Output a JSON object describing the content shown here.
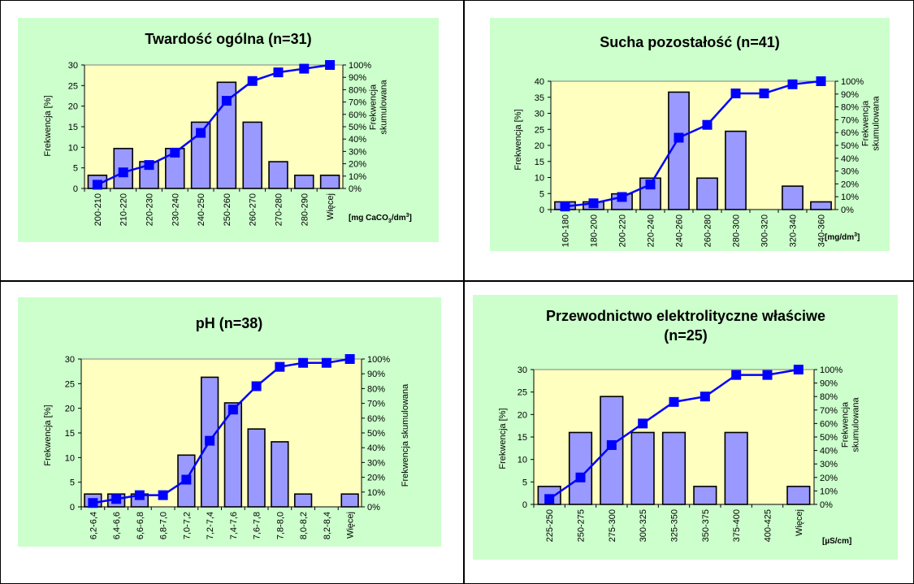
{
  "colors": {
    "panel": "#ccffcc",
    "plot_area": "#ffffc0",
    "bar_fill": "#9999ff",
    "bar_stroke": "#000000",
    "line": "#0000ff"
  },
  "chart_data": [
    {
      "type": "bar",
      "title": "Twardość ogólna (n=31)",
      "ylabel": "Frekwencja [%]",
      "y2label_lines": [
        "Frekwencja",
        "skumulowana"
      ],
      "unit_text": "[mg CaCO",
      "unit_sub": "3",
      "unit_mid": "/dm",
      "unit_sup": "3",
      "unit_end": "]",
      "categories": [
        "200-210",
        "210-220",
        "220-230",
        "230-240",
        "240-250",
        "250-260",
        "260-270",
        "270-280",
        "280-290",
        "Więcej"
      ],
      "series": [
        {
          "values": [
            3.2,
            9.7,
            6.5,
            9.7,
            16.1,
            25.8,
            16.1,
            6.5,
            3.2,
            3.2
          ]
        },
        {
          "axis": "secondary",
          "values": [
            0.03,
            0.13,
            0.19,
            0.29,
            0.45,
            0.71,
            0.87,
            0.94,
            0.97,
            1.0
          ]
        }
      ],
      "ylim": [
        0,
        30
      ],
      "yticks": [
        "0",
        "5",
        "10",
        "15",
        "20",
        "25",
        "30"
      ],
      "y2ticks": [
        "0%",
        "10%",
        "20%",
        "30%",
        "40%",
        "50%",
        "60%",
        "70%",
        "80%",
        "90%",
        "100%"
      ]
    },
    {
      "type": "bar",
      "title": "Sucha  pozostałość (n=41)",
      "ylabel": "Frekwencja [%]",
      "y2label_lines": [
        "Frekwencja",
        "skumulowana"
      ],
      "unit_text": "[mg/dm",
      "unit_sub": "",
      "unit_mid": "",
      "unit_sup": "3",
      "unit_end": "]",
      "categories": [
        "160-180",
        "180-200",
        "200-220",
        "220-240",
        "240-260",
        "260-280",
        "280-300",
        "300-320",
        "320-340",
        "340-360"
      ],
      "series": [
        {
          "values": [
            2.4,
            2.4,
            4.9,
            9.8,
            36.6,
            9.8,
            24.4,
            0,
            7.3,
            2.4
          ]
        },
        {
          "axis": "secondary",
          "values": [
            0.024,
            0.049,
            0.098,
            0.195,
            0.56,
            0.66,
            0.905,
            0.905,
            0.976,
            1.0
          ]
        }
      ],
      "ylim": [
        0,
        40
      ],
      "yticks": [
        "0",
        "5",
        "10",
        "15",
        "20",
        "25",
        "30",
        "35",
        "40"
      ],
      "y2ticks": [
        "0%",
        "10%",
        "20%",
        "30%",
        "40%",
        "50%",
        "60%",
        "70%",
        "80%",
        "90%",
        "100%"
      ]
    },
    {
      "type": "bar",
      "title": "pH (n=38)",
      "ylabel": "Frekwencja [%]",
      "y2label_lines": [
        "Frekwencja skumulowana"
      ],
      "unit_text": "",
      "unit_sub": "",
      "unit_mid": "",
      "unit_sup": "",
      "unit_end": "",
      "categories": [
        "6,2-6,4",
        "6,4-6,6",
        "6,6-6,8",
        "6,8-7,0",
        "7,0-7,2",
        "7,2-7,4",
        "7,4-7,6",
        "7,6-7,8",
        "7,8-8,0",
        "8,0-8,2",
        "8,2-8,4",
        "Więcej"
      ],
      "series": [
        {
          "values": [
            2.6,
            2.6,
            2.6,
            0,
            10.5,
            26.3,
            21.1,
            15.8,
            13.2,
            2.6,
            0,
            2.6
          ]
        },
        {
          "axis": "secondary",
          "values": [
            0.026,
            0.053,
            0.079,
            0.079,
            0.184,
            0.447,
            0.658,
            0.816,
            0.947,
            0.974,
            0.974,
            1.0
          ]
        }
      ],
      "ylim": [
        0,
        30
      ],
      "yticks": [
        "0",
        "5",
        "10",
        "15",
        "20",
        "25",
        "30"
      ],
      "y2ticks": [
        "0%",
        "10%",
        "20%",
        "30%",
        "40%",
        "50%",
        "60%",
        "70%",
        "80%",
        "90%",
        "100%"
      ]
    },
    {
      "type": "bar",
      "title": "Przewodnictwo elektrolityczne właściwe",
      "title2": "(n=25)",
      "ylabel": "Frekwencja [%]",
      "y2label_lines": [
        "Frekwencja",
        "skumulowana"
      ],
      "unit_text": "[µS/cm]",
      "unit_sub": "",
      "unit_mid": "",
      "unit_sup": "",
      "unit_end": "",
      "categories": [
        "225-250",
        "250-275",
        "275-300",
        "300-325",
        "325-350",
        "350-375",
        "375-400",
        "400-425",
        "Więcej"
      ],
      "series": [
        {
          "values": [
            4,
            16,
            24,
            16,
            16,
            4,
            16,
            0,
            4
          ]
        },
        {
          "axis": "secondary",
          "values": [
            0.04,
            0.2,
            0.44,
            0.6,
            0.76,
            0.8,
            0.96,
            0.96,
            1.0
          ]
        }
      ],
      "ylim": [
        0,
        30
      ],
      "yticks": [
        "0",
        "5",
        "10",
        "15",
        "20",
        "25",
        "30"
      ],
      "y2ticks": [
        "0%",
        "10%",
        "20%",
        "30%",
        "40%",
        "50%",
        "60%",
        "70%",
        "80%",
        "90%",
        "100%"
      ]
    }
  ]
}
